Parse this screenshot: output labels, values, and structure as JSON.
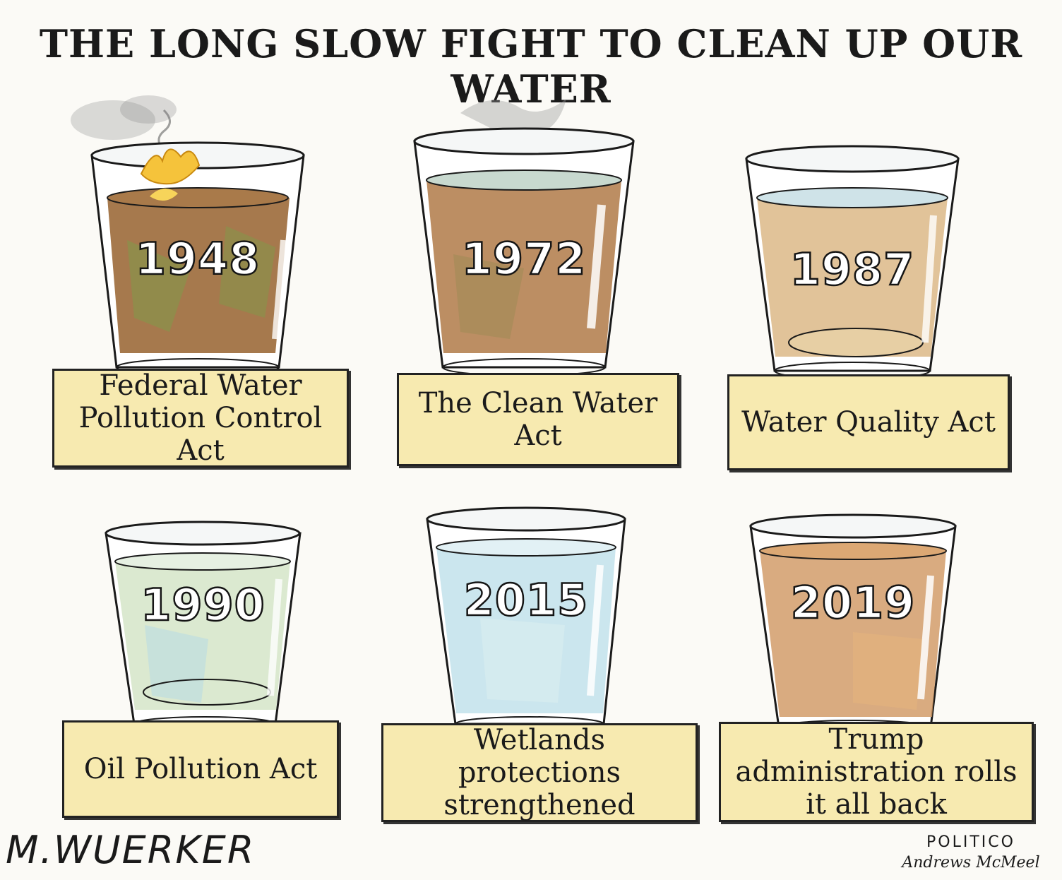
{
  "title": "THE LONG SLOW FIGHT TO CLEAN UP OUR WATER",
  "panels": [
    {
      "year": "1948",
      "label": "Federal Water Pollution Control Act",
      "water_color": "#9c6a3a",
      "accent_color": "#7f9a4a",
      "fire": true,
      "smoke": true
    },
    {
      "year": "1972",
      "label": "The Clean Water Act",
      "water_color": "#b07a48",
      "accent_color": "#9a8a52",
      "fire": false,
      "smoke": true
    },
    {
      "year": "1987",
      "label": "Water Quality Act",
      "water_color": "#dcb887",
      "accent_color": "#e7cfa4",
      "fire": false,
      "smoke": false
    },
    {
      "year": "1990",
      "label": "Oil Pollution Act",
      "water_color": "#d2e3c4",
      "accent_color": "#bfdde0",
      "fire": false,
      "smoke": false
    },
    {
      "year": "2015",
      "label": "Wetlands protections strengthened",
      "water_color": "#b9dde8",
      "accent_color": "#d7ecf0",
      "fire": false,
      "smoke": false
    },
    {
      "year": "2019",
      "label": "Trump administration rolls it all back",
      "water_color": "#cf9660",
      "accent_color": "#e3b27e",
      "fire": false,
      "smoke": false
    }
  ],
  "signature": "M.WUERKER",
  "publisher": {
    "line1": "POLITICO",
    "line2": "Andrews McMeel"
  },
  "colors": {
    "label_bg": "#f7eab0",
    "ink": "#1a1a1a",
    "background": "#fbfaf6",
    "fire": "#f5c33b",
    "smoke": "#8a8a8a"
  }
}
